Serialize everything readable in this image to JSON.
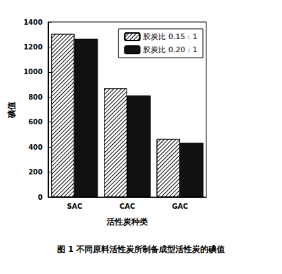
{
  "chart_data": {
    "type": "bar",
    "title": "图 1 不同原料活性炭所制备成型活性炭的碘值",
    "x_label": "活性炭种类",
    "y_label": "碘值",
    "categories": [
      "SAC",
      "CAC",
      "GAC"
    ],
    "series": [
      {
        "name": "胶炭比 0.15 : 1",
        "color": "#ffffff",
        "values": [
          1305,
          870,
          465
        ]
      },
      {
        "name": "胶炭比 0.20 : 1",
        "color": "#111111",
        "values": [
          1265,
          812,
          435
        ]
      }
    ],
    "ylim": [
      0,
      1400
    ],
    "yticks": [
      0,
      200,
      400,
      600,
      800,
      1000,
      1200,
      1400
    ],
    "grid": false,
    "legend": "upper right"
  }
}
